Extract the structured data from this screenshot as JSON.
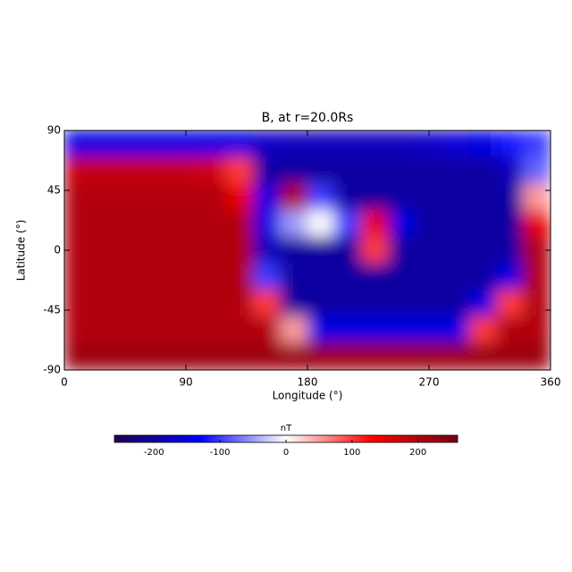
{
  "chart_data": {
    "type": "heatmap",
    "title": "B, at r=20.0Rs",
    "xlabel": "Longitude (°)",
    "ylabel": "Latitude (°)",
    "x": [
      10,
      30,
      50,
      70,
      90,
      110,
      130,
      150,
      170,
      190,
      210,
      230,
      250,
      270,
      290,
      310,
      330,
      350
    ],
    "y": [
      80,
      60,
      40,
      20,
      0,
      -20,
      -40,
      -60,
      -80
    ],
    "z": [
      [
        -150,
        -150,
        -150,
        -150,
        -150,
        -150,
        -150,
        -170,
        -180,
        -180,
        -180,
        -180,
        -180,
        -170,
        -160,
        -150,
        -120,
        -100
      ],
      [
        180,
        180,
        180,
        180,
        180,
        170,
        100,
        -200,
        -200,
        -200,
        -200,
        -200,
        -200,
        -200,
        -200,
        -200,
        -180,
        -80
      ],
      [
        200,
        200,
        200,
        200,
        200,
        200,
        150,
        -150,
        200,
        -100,
        -200,
        -200,
        -200,
        -200,
        -200,
        -200,
        -200,
        50
      ],
      [
        200,
        200,
        200,
        200,
        200,
        200,
        200,
        -150,
        -50,
        0,
        -100,
        150,
        -150,
        -200,
        -200,
        -200,
        -200,
        150
      ],
      [
        200,
        200,
        200,
        200,
        200,
        200,
        200,
        -180,
        -200,
        -200,
        -200,
        100,
        -200,
        -200,
        -200,
        -200,
        -200,
        200
      ],
      [
        200,
        200,
        200,
        200,
        200,
        200,
        200,
        -100,
        -200,
        -200,
        -200,
        -200,
        -200,
        -200,
        -200,
        -200,
        -150,
        200
      ],
      [
        200,
        200,
        200,
        200,
        200,
        200,
        200,
        100,
        -200,
        -200,
        -200,
        -200,
        -200,
        -200,
        -200,
        -150,
        100,
        200
      ],
      [
        200,
        200,
        200,
        200,
        200,
        200,
        200,
        200,
        50,
        -150,
        -150,
        -150,
        -150,
        -150,
        -150,
        100,
        200,
        200
      ],
      [
        220,
        220,
        220,
        220,
        220,
        220,
        220,
        220,
        220,
        220,
        220,
        220,
        220,
        220,
        220,
        220,
        220,
        220
      ]
    ],
    "xlim": [
      0,
      360
    ],
    "xticks": [
      0,
      90,
      180,
      270,
      360
    ],
    "ylim": [
      -90,
      90
    ],
    "yticks": [
      -90,
      -45,
      0,
      45,
      90
    ],
    "colormap": [
      "#200050",
      "#0000ff",
      "#ffffff",
      "#ff0000",
      "#700018"
    ],
    "zlim": [
      -260,
      260
    ],
    "zticks": [
      -200,
      -100,
      0,
      100,
      200
    ],
    "colorbar_label": "nT"
  }
}
